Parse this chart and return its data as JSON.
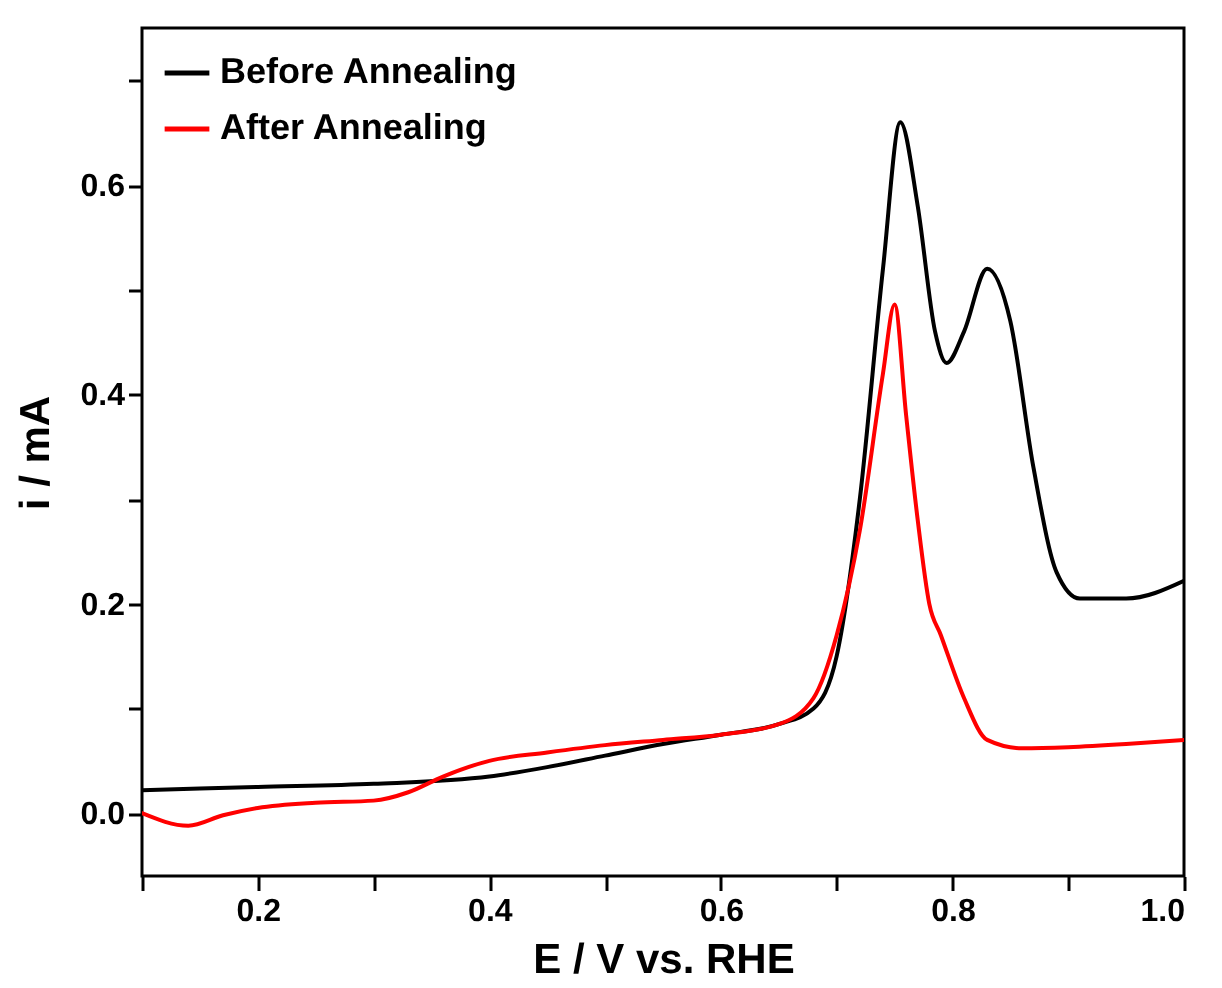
{
  "chart_data": {
    "type": "line",
    "xlabel": "E / V vs. RHE",
    "ylabel": "i / mA",
    "xlim": [
      0.1,
      1.0
    ],
    "ylim": [
      -0.06,
      0.75
    ],
    "xticks": [
      {
        "value": 0.1,
        "label": null
      },
      0.2,
      {
        "value": 0.3,
        "label": null
      },
      0.4,
      {
        "value": 0.5,
        "label": null
      },
      0.6,
      {
        "value": 0.7,
        "label": null
      },
      0.8,
      {
        "value": 0.9,
        "label": null
      },
      {
        "value": 1.0,
        "label": "1.0"
      }
    ],
    "yticks": [
      {
        "value": 0,
        "label": "0.0"
      },
      {
        "value": 0.1,
        "label": null
      },
      0.2,
      {
        "value": 0.3,
        "label": null
      },
      0.4,
      {
        "value": 0.5,
        "label": null
      },
      0.6,
      {
        "value": 0.7,
        "label": null
      }
    ],
    "grid": false,
    "legend": "top left",
    "series": [
      {
        "name": "Before Annealing",
        "color": "#000000",
        "x": [
          0.1,
          0.2,
          0.3,
          0.4,
          0.45,
          0.5,
          0.55,
          0.6,
          0.65,
          0.68,
          0.7,
          0.72,
          0.74,
          0.755,
          0.77,
          0.785,
          0.795,
          0.81,
          0.83,
          0.85,
          0.87,
          0.89,
          0.91,
          0.95,
          1.0
        ],
        "values": [
          0.022,
          0.025,
          0.028,
          0.035,
          0.044,
          0.055,
          0.066,
          0.075,
          0.085,
          0.1,
          0.15,
          0.3,
          0.52,
          0.66,
          0.58,
          0.46,
          0.43,
          0.46,
          0.52,
          0.47,
          0.33,
          0.23,
          0.205,
          0.205,
          0.222
        ]
      },
      {
        "name": "After Annealing",
        "color": "#ff0000",
        "x": [
          0.1,
          0.14,
          0.17,
          0.2,
          0.25,
          0.3,
          0.33,
          0.36,
          0.4,
          0.45,
          0.5,
          0.55,
          0.6,
          0.65,
          0.68,
          0.7,
          0.72,
          0.74,
          0.75,
          0.76,
          0.77,
          0.78,
          0.79,
          0.81,
          0.83,
          0.86,
          0.9,
          0.95,
          1.0
        ],
        "values": [
          0.0,
          -0.012,
          -0.002,
          0.005,
          0.01,
          0.012,
          0.02,
          0.035,
          0.05,
          0.058,
          0.065,
          0.07,
          0.075,
          0.085,
          0.11,
          0.17,
          0.27,
          0.42,
          0.486,
          0.38,
          0.28,
          0.2,
          0.17,
          0.11,
          0.07,
          0.062,
          0.063,
          0.066,
          0.07
        ]
      }
    ]
  }
}
